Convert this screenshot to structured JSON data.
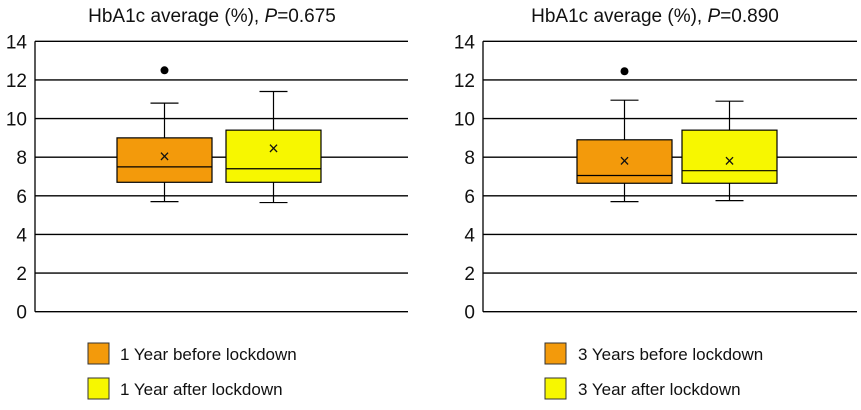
{
  "chart_data": [
    {
      "type": "boxplot",
      "title": "HbA1c average (%), ",
      "p_label": "P",
      "p_value": "=0.675",
      "ylim": [
        0,
        14
      ],
      "yticks": [
        "0",
        "2",
        "4",
        "6",
        "8",
        "10",
        "12",
        "14"
      ],
      "grid": true,
      "legend_placement": "bottom",
      "series": [
        {
          "name": "1 Year before lockdown",
          "color": "#F39A0B",
          "min": 5.7,
          "q1": 6.7,
          "median": 7.5,
          "q3": 9.0,
          "max": 10.8,
          "mean": 8.1,
          "outliers": [
            12.5
          ]
        },
        {
          "name": "1 Year after lockdown",
          "color": "#F7F700",
          "min": 5.65,
          "q1": 6.7,
          "median": 7.4,
          "q3": 9.4,
          "max": 11.4,
          "mean": 8.5,
          "outliers": []
        }
      ]
    },
    {
      "type": "boxplot",
      "title": "HbA1c average (%), ",
      "p_label": "P",
      "p_value": "=0.890",
      "ylim": [
        0,
        14
      ],
      "yticks": [
        "0",
        "2",
        "4",
        "6",
        "8",
        "10",
        "12",
        "14"
      ],
      "grid": true,
      "legend_placement": "bottom",
      "series": [
        {
          "name": "3 Years before lockdown",
          "color": "#F39A0B",
          "min": 5.7,
          "q1": 6.65,
          "median": 7.05,
          "q3": 8.9,
          "max": 10.95,
          "mean": 7.85,
          "outliers": [
            12.45
          ]
        },
        {
          "name": "3 Year after lockdown",
          "color": "#F7F700",
          "min": 5.75,
          "q1": 6.65,
          "median": 7.3,
          "q3": 9.4,
          "max": 10.9,
          "mean": 7.85,
          "outliers": []
        }
      ]
    }
  ]
}
